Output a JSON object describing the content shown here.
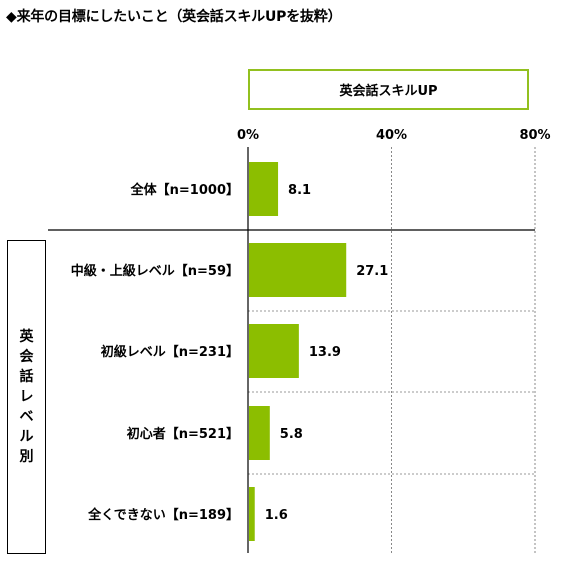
{
  "title": "◆来年の目標にしたいこと（英会話スキルUPを抜粋）",
  "group_label": "英会話レベル別",
  "chart_data": {
    "type": "bar",
    "orientation": "horizontal",
    "series": [
      {
        "name": "英会話スキルUP",
        "values": [
          8.1,
          27.1,
          13.9,
          5.8,
          1.6
        ]
      }
    ],
    "categories": [
      "全体【n=1000】",
      "中級・上級レベル【n=59】",
      "初級レベル【n=231】",
      "初心者【n=521】",
      "全くできない【n=189】"
    ],
    "data_labels": [
      "8.1",
      "27.1",
      "13.9",
      "5.8",
      "1.6"
    ],
    "xlim": [
      0,
      80
    ],
    "x_ticks": [
      "0%",
      "40%",
      "80%"
    ],
    "bar_color": "#8cbe00",
    "grid": "dashed horizontal separators between categories",
    "legend": "top"
  }
}
